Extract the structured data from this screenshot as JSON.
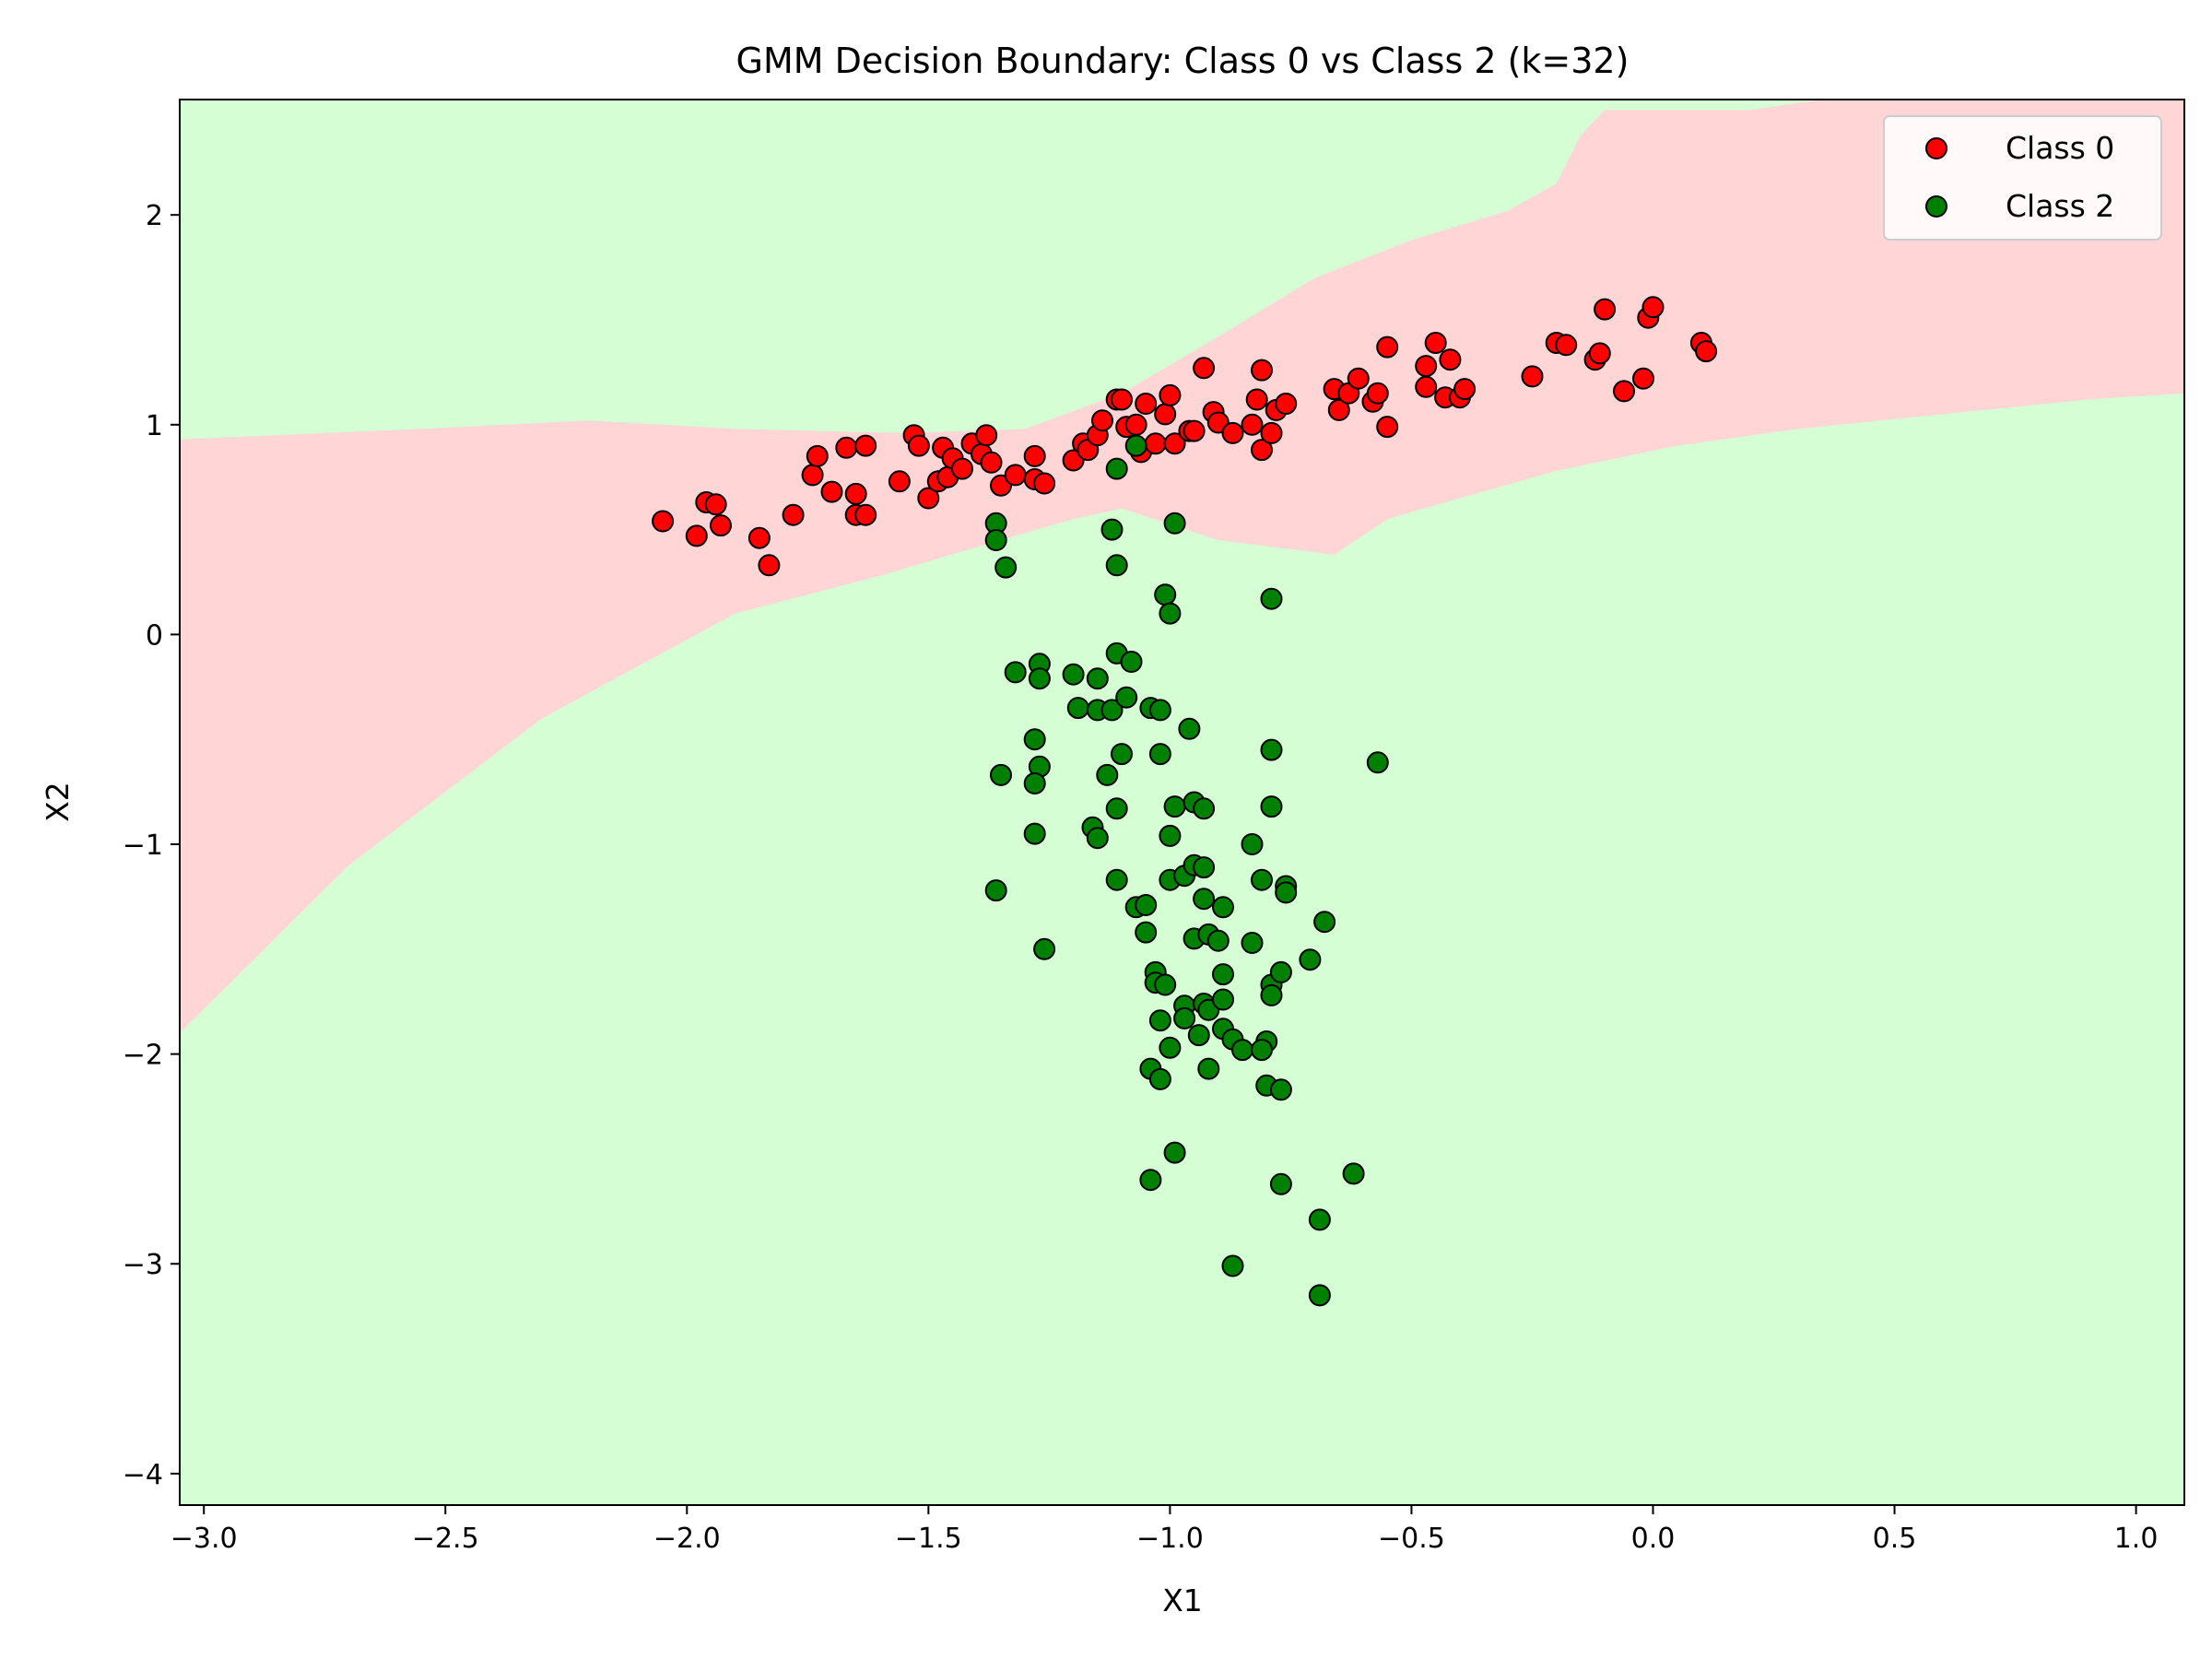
{
  "chart_data": {
    "type": "scatter",
    "title": "GMM Decision Boundary: Class 0 vs Class 2 (k=32)",
    "xlabel": "X1",
    "ylabel": "X2",
    "xlim": [
      -3.05,
      1.1
    ],
    "ylim": [
      -4.15,
      2.55
    ],
    "x_ticks": [
      -3.0,
      -2.5,
      -2.0,
      -1.5,
      -1.0,
      -0.5,
      0.0,
      0.5,
      1.0
    ],
    "x_tick_labels": [
      "−3.0",
      "−2.5",
      "−2.0",
      "−1.5",
      "−1.0",
      "−0.5",
      "0.0",
      "0.5",
      "1.0"
    ],
    "y_ticks": [
      2,
      1,
      0,
      -1,
      -2,
      -3,
      -4
    ],
    "y_tick_labels": [
      "2",
      "1",
      "0",
      "−1",
      "−2",
      "−3",
      "−4"
    ],
    "grid": false,
    "legend_position": "top-right",
    "region_colors": {
      "class0": "#ffd5d5",
      "class2": "#d5fed5"
    },
    "class0_region": [
      [
        -3.05,
        0.93
      ],
      [
        -2.55,
        0.98
      ],
      [
        -2.2,
        1.02
      ],
      [
        -1.9,
        0.98
      ],
      [
        -1.55,
        0.96
      ],
      [
        -1.3,
        0.98
      ],
      [
        -1.1,
        1.15
      ],
      [
        -0.9,
        1.42
      ],
      [
        -0.7,
        1.7
      ],
      [
        -0.5,
        1.88
      ],
      [
        -0.3,
        2.02
      ],
      [
        -0.2,
        2.15
      ],
      [
        -0.15,
        2.38
      ],
      [
        -0.1,
        2.5
      ],
      [
        0.2,
        2.5
      ],
      [
        0.35,
        2.55
      ],
      [
        1.1,
        2.55
      ],
      [
        1.1,
        1.15
      ],
      [
        0.9,
        1.12
      ],
      [
        0.6,
        1.05
      ],
      [
        0.3,
        0.98
      ],
      [
        0.05,
        0.9
      ],
      [
        -0.2,
        0.78
      ],
      [
        -0.4,
        0.65
      ],
      [
        -0.55,
        0.55
      ],
      [
        -0.66,
        0.38
      ],
      [
        -0.9,
        0.45
      ],
      [
        -1.1,
        0.6
      ],
      [
        -1.2,
        0.55
      ],
      [
        -1.35,
        0.45
      ],
      [
        -1.6,
        0.28
      ],
      [
        -1.9,
        0.1
      ],
      [
        -2.3,
        -0.4
      ],
      [
        -2.7,
        -1.1
      ],
      [
        -3.05,
        -1.9
      ]
    ],
    "series": [
      {
        "name": "Class 0",
        "color": "#ff0000",
        "points": [
          [
            -2.05,
            0.54
          ],
          [
            -1.98,
            0.47
          ],
          [
            -1.96,
            0.63
          ],
          [
            -1.94,
            0.62
          ],
          [
            -1.93,
            0.52
          ],
          [
            -1.85,
            0.46
          ],
          [
            -1.83,
            0.33
          ],
          [
            -1.78,
            0.57
          ],
          [
            -1.74,
            0.76
          ],
          [
            -1.73,
            0.85
          ],
          [
            -1.7,
            0.68
          ],
          [
            -1.67,
            0.89
          ],
          [
            -1.65,
            0.57
          ],
          [
            -1.65,
            0.67
          ],
          [
            -1.63,
            0.9
          ],
          [
            -1.63,
            0.57
          ],
          [
            -1.56,
            0.73
          ],
          [
            -1.53,
            0.95
          ],
          [
            -1.52,
            0.9
          ],
          [
            -1.5,
            0.65
          ],
          [
            -1.48,
            0.73
          ],
          [
            -1.47,
            0.89
          ],
          [
            -1.46,
            0.75
          ],
          [
            -1.45,
            0.84
          ],
          [
            -1.43,
            0.79
          ],
          [
            -1.41,
            0.91
          ],
          [
            -1.39,
            0.86
          ],
          [
            -1.38,
            0.95
          ],
          [
            -1.37,
            0.82
          ],
          [
            -1.35,
            0.71
          ],
          [
            -1.32,
            0.76
          ],
          [
            -1.28,
            0.85
          ],
          [
            -1.28,
            0.74
          ],
          [
            -1.26,
            0.72
          ],
          [
            -1.2,
            0.83
          ],
          [
            -1.18,
            0.91
          ],
          [
            -1.17,
            0.88
          ],
          [
            -1.15,
            0.95
          ],
          [
            -1.14,
            1.02
          ],
          [
            -1.11,
            1.12
          ],
          [
            -1.1,
            1.12
          ],
          [
            -1.09,
            0.99
          ],
          [
            -1.07,
            1.0
          ],
          [
            -1.06,
            0.87
          ],
          [
            -1.05,
            1.1
          ],
          [
            -1.03,
            0.91
          ],
          [
            -1.01,
            1.05
          ],
          [
            -1.0,
            1.14
          ],
          [
            -0.99,
            0.91
          ],
          [
            -0.96,
            0.97
          ],
          [
            -0.95,
            0.97
          ],
          [
            -0.93,
            1.27
          ],
          [
            -0.91,
            1.06
          ],
          [
            -0.9,
            1.01
          ],
          [
            -0.87,
            0.96
          ],
          [
            -0.83,
            1.0
          ],
          [
            -0.82,
            1.12
          ],
          [
            -0.81,
            1.26
          ],
          [
            -0.81,
            0.88
          ],
          [
            -0.79,
            0.96
          ],
          [
            -0.78,
            1.07
          ],
          [
            -0.76,
            1.1
          ],
          [
            -0.66,
            1.17
          ],
          [
            -0.65,
            1.07
          ],
          [
            -0.63,
            1.15
          ],
          [
            -0.61,
            1.22
          ],
          [
            -0.58,
            1.11
          ],
          [
            -0.57,
            1.15
          ],
          [
            -0.55,
            1.37
          ],
          [
            -0.55,
            0.99
          ],
          [
            -0.47,
            1.18
          ],
          [
            -0.47,
            1.28
          ],
          [
            -0.45,
            1.39
          ],
          [
            -0.43,
            1.13
          ],
          [
            -0.42,
            1.31
          ],
          [
            -0.4,
            1.13
          ],
          [
            -0.39,
            1.17
          ],
          [
            -0.25,
            1.23
          ],
          [
            -0.2,
            1.39
          ],
          [
            -0.18,
            1.38
          ],
          [
            -0.12,
            1.31
          ],
          [
            -0.11,
            1.34
          ],
          [
            -0.1,
            1.55
          ],
          [
            -0.06,
            1.16
          ],
          [
            -0.02,
            1.22
          ],
          [
            -0.01,
            1.51
          ],
          [
            0.0,
            1.56
          ],
          [
            0.1,
            1.39
          ],
          [
            0.11,
            1.35
          ]
        ]
      },
      {
        "name": "Class 2",
        "color": "#008000",
        "points": [
          [
            -1.36,
            0.53
          ],
          [
            -1.36,
            0.45
          ],
          [
            -1.34,
            0.32
          ],
          [
            -1.32,
            -0.18
          ],
          [
            -1.27,
            -0.14
          ],
          [
            -1.27,
            -0.21
          ],
          [
            -1.28,
            -0.5
          ],
          [
            -1.27,
            -0.63
          ],
          [
            -1.28,
            -0.71
          ],
          [
            -1.35,
            -0.67
          ],
          [
            -1.28,
            -0.95
          ],
          [
            -1.36,
            -1.22
          ],
          [
            -1.26,
            -1.5
          ],
          [
            -1.2,
            -0.19
          ],
          [
            -1.19,
            -0.35
          ],
          [
            -1.15,
            -0.21
          ],
          [
            -1.15,
            -0.36
          ],
          [
            -1.13,
            -0.67
          ],
          [
            -1.12,
            -0.36
          ],
          [
            -1.12,
            0.5
          ],
          [
            -1.11,
            0.33
          ],
          [
            -1.11,
            0.79
          ],
          [
            -1.11,
            -0.09
          ],
          [
            -1.09,
            -0.3
          ],
          [
            -1.08,
            -0.13
          ],
          [
            -1.1,
            -0.57
          ],
          [
            -1.11,
            -0.83
          ],
          [
            -1.16,
            -0.92
          ],
          [
            -1.15,
            -0.97
          ],
          [
            -1.11,
            -1.17
          ],
          [
            -1.07,
            -1.3
          ],
          [
            -1.05,
            -1.29
          ],
          [
            -1.05,
            -1.42
          ],
          [
            -1.04,
            -0.35
          ],
          [
            -1.02,
            -0.36
          ],
          [
            -1.02,
            -0.57
          ],
          [
            -1.01,
            0.19
          ],
          [
            -1.0,
            0.1
          ],
          [
            -0.99,
            0.53
          ],
          [
            -1.07,
            0.9
          ],
          [
            -0.99,
            -0.82
          ],
          [
            -1.0,
            -0.96
          ],
          [
            -1.0,
            -1.17
          ],
          [
            -0.97,
            -1.15
          ],
          [
            -0.96,
            -0.45
          ],
          [
            -0.95,
            -0.8
          ],
          [
            -0.93,
            -0.83
          ],
          [
            -0.95,
            -1.1
          ],
          [
            -0.93,
            -1.11
          ],
          [
            -0.93,
            -1.26
          ],
          [
            -0.89,
            -1.3
          ],
          [
            -0.95,
            -1.45
          ],
          [
            -0.92,
            -1.43
          ],
          [
            -0.9,
            -1.46
          ],
          [
            -0.89,
            -1.62
          ],
          [
            -1.03,
            -1.61
          ],
          [
            -1.03,
            -1.66
          ],
          [
            -1.01,
            -1.67
          ],
          [
            -0.97,
            -1.77
          ],
          [
            -0.93,
            -1.76
          ],
          [
            -0.92,
            -1.79
          ],
          [
            -0.89,
            -1.74
          ],
          [
            -1.02,
            -1.84
          ],
          [
            -0.97,
            -1.83
          ],
          [
            -0.94,
            -1.91
          ],
          [
            -0.89,
            -1.88
          ],
          [
            -0.87,
            -1.93
          ],
          [
            -0.85,
            -1.98
          ],
          [
            -1.0,
            -1.97
          ],
          [
            -1.04,
            -2.07
          ],
          [
            -1.02,
            -2.12
          ],
          [
            -0.92,
            -2.07
          ],
          [
            -0.83,
            -1.0
          ],
          [
            -0.81,
            -1.17
          ],
          [
            -0.83,
            -1.47
          ],
          [
            -0.79,
            -0.82
          ],
          [
            -0.79,
            -0.55
          ],
          [
            -0.79,
            0.17
          ],
          [
            -0.76,
            -1.2
          ],
          [
            -0.76,
            -1.23
          ],
          [
            -0.79,
            -1.67
          ],
          [
            -0.77,
            -1.61
          ],
          [
            -0.79,
            -1.72
          ],
          [
            -0.8,
            -1.94
          ],
          [
            -0.81,
            -1.98
          ],
          [
            -0.8,
            -2.15
          ],
          [
            -0.77,
            -2.17
          ],
          [
            -0.71,
            -1.55
          ],
          [
            -0.68,
            -1.37
          ],
          [
            -0.57,
            -0.61
          ],
          [
            -1.04,
            -2.6
          ],
          [
            -0.99,
            -2.47
          ],
          [
            -0.77,
            -2.62
          ],
          [
            -0.62,
            -2.57
          ],
          [
            -0.69,
            -2.79
          ],
          [
            -0.87,
            -3.01
          ],
          [
            -0.69,
            -3.15
          ]
        ]
      }
    ]
  }
}
